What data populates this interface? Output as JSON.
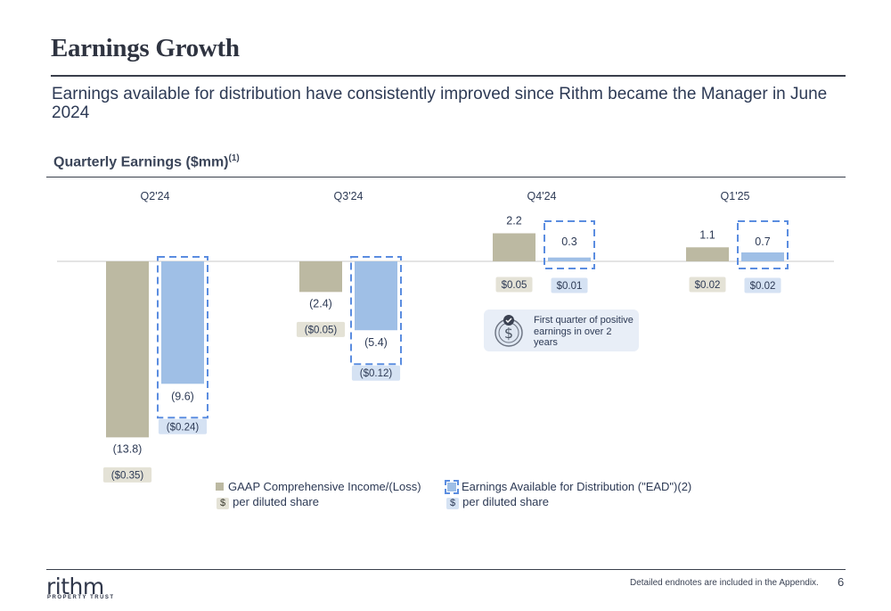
{
  "page": {
    "title": "Earnings Growth",
    "subtitle": "Earnings available for distribution have consistently improved since Rithm became the Manager in June 2024",
    "footnote": "Detailed endnotes are included in the Appendix.",
    "page_number": "6",
    "logo_text": "rithm",
    "logo_subtext": "PROPERTY TRUST"
  },
  "callout": {
    "text": "First quarter of positive earnings in over 2 years",
    "icon": "dollar-check-icon"
  },
  "legend": {
    "gaap_label": "GAAP Comprehensive Income/(Loss)",
    "ead_label": "Earnings Available for Distribution (\"EAD\")(2)",
    "dollar_symbol": "$",
    "per_share_label": "per diluted share"
  },
  "chart_data": {
    "type": "bar",
    "title": "Quarterly Earnings ($mm)",
    "title_note": "(1)",
    "categories": [
      "Q2'24",
      "Q3'24",
      "Q4'24",
      "Q1'25"
    ],
    "series": [
      {
        "name": "GAAP Comprehensive Income/(Loss)",
        "values": [
          -13.8,
          -2.4,
          2.2,
          1.1
        ],
        "value_labels": [
          "(13.8)",
          "(2.4)",
          "2.2",
          "1.1"
        ],
        "per_share_labels": [
          "($0.35)",
          "($0.05)",
          "$0.05",
          "$0.02"
        ],
        "color": "#bcb9a2"
      },
      {
        "name": "Earnings Available for Distribution (\"EAD\")(2)",
        "values": [
          -9.6,
          -5.4,
          0.3,
          0.7
        ],
        "value_labels": [
          "(9.6)",
          "(5.4)",
          "0.3",
          "0.7"
        ],
        "per_share_labels": [
          "($0.24)",
          "($0.12)",
          "$0.01",
          "$0.02"
        ],
        "color": "#9fbfe6",
        "highlight_color": "#5b8de0"
      }
    ],
    "grid": false,
    "legend_position": "bottom"
  }
}
